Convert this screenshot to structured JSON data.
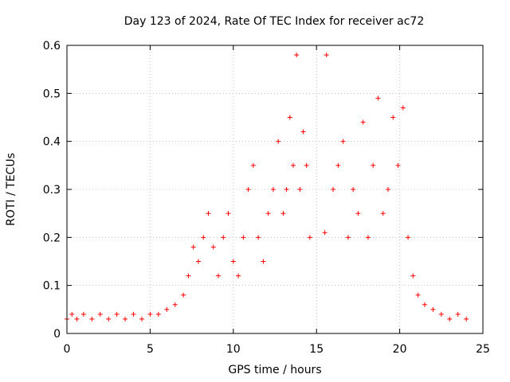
{
  "chart_data": {
    "type": "scatter",
    "title": "Day 123 of 2024, Rate Of TEC Index for receiver ac72",
    "xlabel": "GPS time / hours",
    "ylabel": "ROTI / TECUs",
    "xlim": [
      0,
      25
    ],
    "ylim": [
      0,
      0.6
    ],
    "xticks": [
      "0",
      "5",
      "10",
      "15",
      "20",
      "25"
    ],
    "yticks": [
      "0",
      "0.1",
      "0.2",
      "0.3",
      "0.4",
      "0.5",
      "0.6"
    ],
    "grid": true,
    "marker": "+",
    "color": "#ff0000",
    "series": [
      {
        "x": [
          0.0,
          0.3,
          0.6,
          1.0,
          1.5,
          2.0,
          2.5,
          3.0,
          3.5,
          4.0,
          4.5,
          5.0,
          5.5,
          6.0,
          6.5,
          7.0,
          7.3,
          7.6,
          7.9,
          8.2,
          8.5,
          8.8,
          9.1,
          9.4,
          9.7,
          10.0,
          10.3,
          10.6,
          10.9,
          11.2,
          11.5,
          11.8,
          12.1,
          12.4,
          12.7,
          13.0,
          13.2,
          13.4,
          13.6,
          13.8,
          14.0,
          14.2,
          14.4,
          14.6,
          15.5,
          15.6,
          16.0,
          16.3,
          16.6,
          16.9,
          17.2,
          17.5,
          17.8,
          18.1,
          18.4,
          18.7,
          19.0,
          19.3,
          19.6,
          19.9,
          20.2,
          20.5,
          20.8,
          21.1,
          21.5,
          22.0,
          22.5,
          23.0,
          23.5,
          24.0
        ],
        "y": [
          0.03,
          0.04,
          0.03,
          0.04,
          0.03,
          0.04,
          0.03,
          0.04,
          0.03,
          0.04,
          0.03,
          0.04,
          0.04,
          0.05,
          0.06,
          0.08,
          0.12,
          0.18,
          0.15,
          0.2,
          0.25,
          0.18,
          0.12,
          0.2,
          0.25,
          0.15,
          0.12,
          0.2,
          0.3,
          0.35,
          0.2,
          0.15,
          0.25,
          0.3,
          0.4,
          0.25,
          0.3,
          0.45,
          0.35,
          0.58,
          0.3,
          0.42,
          0.35,
          0.2,
          0.21,
          0.58,
          0.3,
          0.35,
          0.4,
          0.2,
          0.3,
          0.25,
          0.44,
          0.2,
          0.35,
          0.49,
          0.25,
          0.3,
          0.45,
          0.35,
          0.47,
          0.2,
          0.12,
          0.08,
          0.06,
          0.05,
          0.04,
          0.03,
          0.04,
          0.03
        ]
      }
    ]
  }
}
